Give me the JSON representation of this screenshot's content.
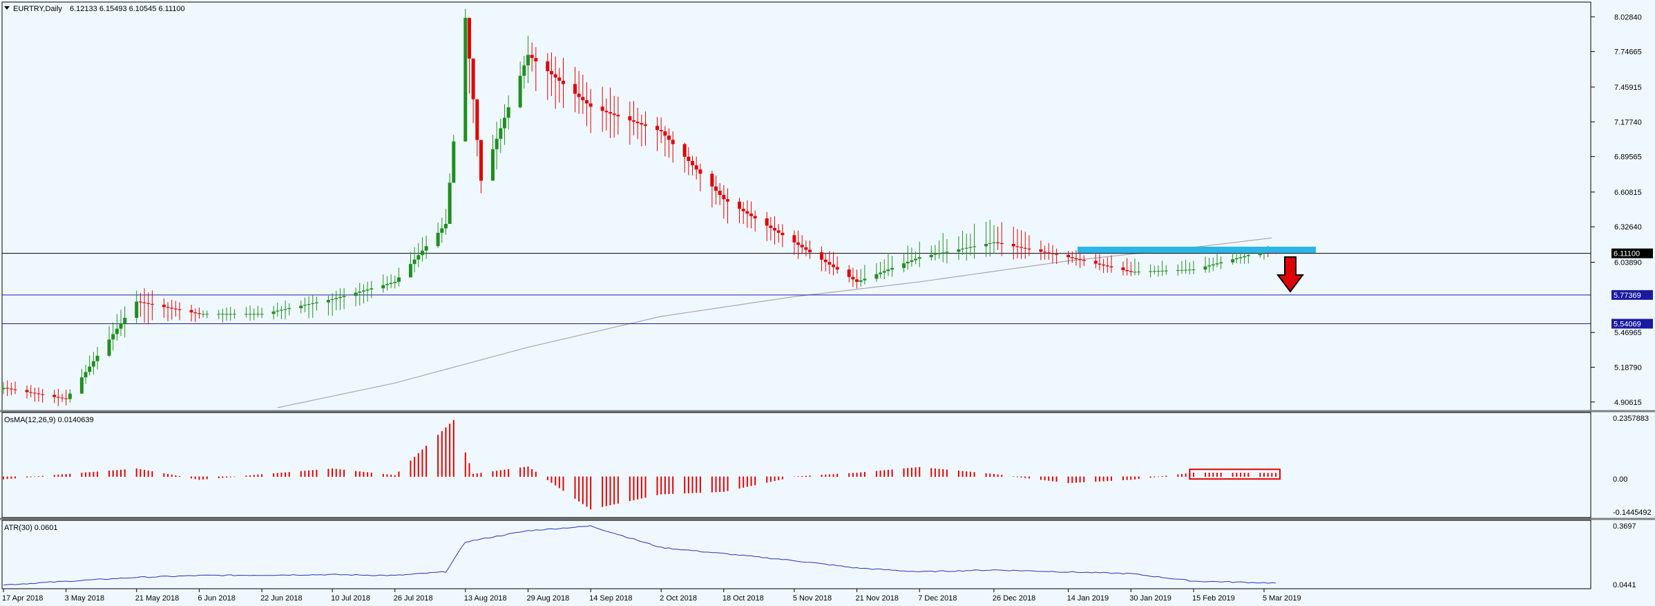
{
  "header": {
    "symbol": "EURTRY,Daily",
    "ohlc": "6.12133 6.15493 6.10545 6.11100"
  },
  "colors": {
    "background": "#f0f8ff",
    "bull": "#1f8f1f",
    "bear": "#e00000",
    "axis": "#000000",
    "ma": "#a8a8a8",
    "atr": "#2233bb",
    "level": "#1a1aa0",
    "resistance": "#29b6e8",
    "highlight_box": "#e00000",
    "price_badge_bg": "#000000",
    "level_badge_bg": "#1a1aa0"
  },
  "price_axis": {
    "ticks": [
      "8.02840",
      "7.74665",
      "7.45915",
      "7.17740",
      "6.89565",
      "6.60815",
      "6.32640",
      "6.03890",
      "5.46965",
      "5.18790",
      "4.90615"
    ],
    "current_price": "6.11100",
    "levels": [
      "5.77369",
      "5.54069"
    ]
  },
  "osma": {
    "label": "OsMA(12,26,9) 0.0140639",
    "ticks": [
      "0.2357883",
      "0.00",
      "-0.1445492"
    ]
  },
  "atr": {
    "label": "ATR(30) 0.0601",
    "ticks": [
      "0.3697",
      "0.0441"
    ]
  },
  "time_axis": {
    "labels": [
      "17 Apr 2018",
      "3 May 2018",
      "21 May 2018",
      "6 Jun 2018",
      "22 Jun 2018",
      "10 Jul 2018",
      "26 Jul 2018",
      "13 Aug 2018",
      "29 Aug 2018",
      "14 Sep 2018",
      "2 Oct 2018",
      "18 Oct 2018",
      "5 Nov 2018",
      "21 Nov 2018",
      "7 Dec 2018",
      "26 Dec 2018",
      "14 Jan 2019",
      "30 Jan 2019",
      "15 Feb 2019",
      "5 Mar 2019"
    ]
  },
  "annotations": {
    "resistance_zone": [
      6.115,
      6.165
    ],
    "down_arrow": "bearish",
    "osma_box": "last bars"
  },
  "chart_data": {
    "type": "candlestick",
    "ylim": [
      4.86,
      8.12
    ],
    "anchors": {
      "dates": [
        "17 Apr 2018",
        "3 May 2018",
        "21 May 2018",
        "6 Jun 2018",
        "22 Jun 2018",
        "10 Jul 2018",
        "26 Jul 2018",
        "8 Aug 2018",
        "13 Aug 2018",
        "17 Aug 2018",
        "29 Aug 2018",
        "14 Sep 2018",
        "2 Oct 2018",
        "18 Oct 2018",
        "5 Nov 2018",
        "21 Nov 2018",
        "7 Dec 2018",
        "26 Dec 2018",
        "14 Jan 2019",
        "30 Jan 2019",
        "15 Feb 2019",
        "5 Mar 2019",
        "8 Mar 2019"
      ],
      "close": [
        5.02,
        4.93,
        5.72,
        5.62,
        5.62,
        5.74,
        5.88,
        6.35,
        8.02,
        6.7,
        7.72,
        7.3,
        7.1,
        6.55,
        6.2,
        5.88,
        6.08,
        6.2,
        6.08,
        5.96,
        5.98,
        6.13,
        6.111
      ],
      "high": [
        5.09,
        5.01,
        5.86,
        5.68,
        5.69,
        5.81,
        5.97,
        6.48,
        8.12,
        6.9,
        7.88,
        7.56,
        7.22,
        6.68,
        6.32,
        6.01,
        6.22,
        6.4,
        6.15,
        6.07,
        6.07,
        6.18,
        6.155
      ],
      "low": [
        4.95,
        4.86,
        5.52,
        5.55,
        5.55,
        5.6,
        5.8,
        6.2,
        7.6,
        6.45,
        7.45,
        7.06,
        6.93,
        6.35,
        6.07,
        5.82,
        6.0,
        6.07,
        6.0,
        5.91,
        5.92,
        6.06,
        6.105
      ]
    },
    "levels": {
      "current": 6.111,
      "horizontal": [
        5.77369,
        5.54069
      ]
    },
    "ma_curve": {
      "dates": [
        "26 Jun 2018",
        "26 Jul 2018",
        "29 Aug 2018",
        "2 Oct 2018",
        "5 Nov 2018",
        "7 Dec 2018",
        "14 Jan 2019",
        "15 Feb 2019",
        "8 Mar 2019"
      ],
      "values": [
        4.86,
        5.06,
        5.35,
        5.6,
        5.76,
        5.88,
        6.05,
        6.16,
        6.24
      ]
    },
    "osma": {
      "ylim": [
        -0.1445492,
        0.2357883
      ],
      "dates": [
        "17 Apr 2018",
        "21 May 2018",
        "6 Jun 2018",
        "10 Jul 2018",
        "26 Jul 2018",
        "10 Aug 2018",
        "15 Aug 2018",
        "29 Aug 2018",
        "14 Sep 2018",
        "2 Oct 2018",
        "18 Oct 2018",
        "5 Nov 2018",
        "21 Nov 2018",
        "7 Dec 2018",
        "26 Dec 2018",
        "14 Jan 2019",
        "30 Jan 2019",
        "15 Feb 2019",
        "8 Mar 2019"
      ],
      "values": [
        -0.01,
        0.032,
        -0.012,
        0.032,
        0.005,
        0.225,
        0.01,
        0.04,
        -0.13,
        -0.07,
        -0.06,
        0.0,
        0.015,
        0.038,
        0.01,
        -0.025,
        -0.012,
        0.015,
        0.014
      ]
    },
    "atr": {
      "ylim": [
        0.0441,
        0.3697
      ],
      "dates": [
        "17 Apr 2018",
        "21 May 2018",
        "6 Jun 2018",
        "10 Jul 2018",
        "26 Jul 2018",
        "8 Aug 2018",
        "13 Aug 2018",
        "29 Aug 2018",
        "14 Sep 2018",
        "2 Oct 2018",
        "5 Nov 2018",
        "21 Nov 2018",
        "7 Dec 2018",
        "26 Dec 2018",
        "30 Jan 2019",
        "15 Feb 2019",
        "8 Mar 2019"
      ],
      "values": [
        0.05,
        0.09,
        0.1,
        0.105,
        0.1,
        0.12,
        0.28,
        0.34,
        0.365,
        0.25,
        0.18,
        0.14,
        0.12,
        0.13,
        0.11,
        0.07,
        0.06
      ]
    }
  }
}
